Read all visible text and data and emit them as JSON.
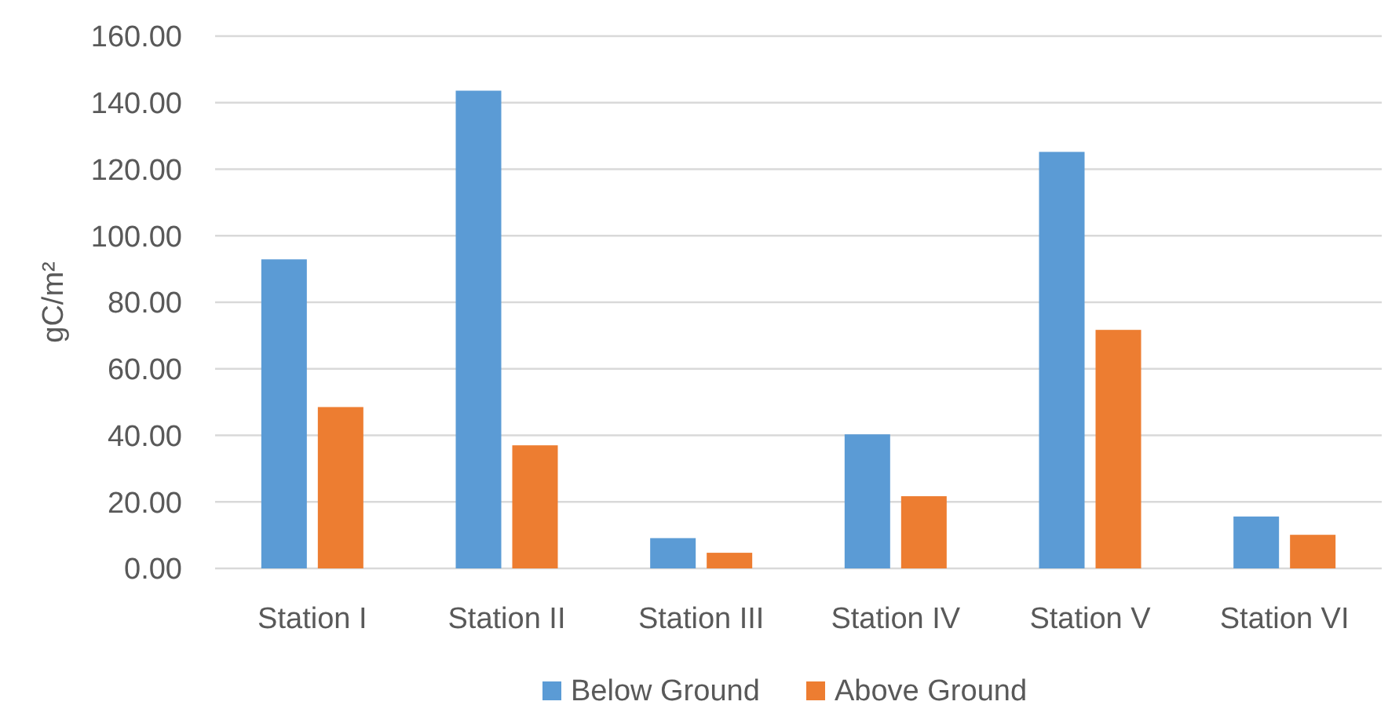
{
  "chart_data": {
    "type": "bar",
    "ylabel": "gC/m²",
    "categories": [
      "Station I",
      "Station II",
      "Station III",
      "Station IV",
      "Station V",
      "Station VI"
    ],
    "series": [
      {
        "name": "Below Ground",
        "color": "#5b9bd5",
        "values": [
          92.9,
          143.6,
          9.1,
          40.3,
          125.2,
          15.6
        ]
      },
      {
        "name": "Above Ground",
        "color": "#ed7d31",
        "values": [
          48.5,
          37.0,
          4.7,
          21.7,
          71.7,
          10.1
        ]
      }
    ],
    "ylim": [
      0,
      160
    ],
    "yticks": [
      {
        "value": 0,
        "label": "0.00"
      },
      {
        "value": 20,
        "label": "20.00"
      },
      {
        "value": 40,
        "label": "40.00"
      },
      {
        "value": 60,
        "label": "60.00"
      },
      {
        "value": 80,
        "label": "80.00"
      },
      {
        "value": 100,
        "label": "100.00"
      },
      {
        "value": 120,
        "label": "120.00"
      },
      {
        "value": 140,
        "label": "140.00"
      },
      {
        "value": 160,
        "label": "160.00"
      }
    ],
    "grid": "y",
    "legend": "bottom"
  }
}
